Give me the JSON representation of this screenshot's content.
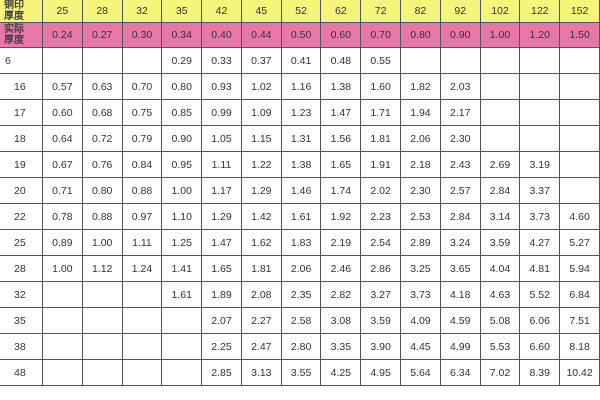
{
  "table": {
    "header_label": "铜印\n厚度",
    "actual_label": "实际\n厚度",
    "columns": [
      "25",
      "28",
      "32",
      "35",
      "42",
      "45",
      "52",
      "62",
      "72",
      "82",
      "92",
      "102",
      "122",
      "152"
    ],
    "actual": [
      "0.24",
      "0.27",
      "0.30",
      "0.34",
      "0.40",
      "0.44",
      "0.50",
      "0.60",
      "0.70",
      "0.80",
      "0.90",
      "1.00",
      "1.20",
      "1.50"
    ],
    "rows": [
      {
        "label": "6",
        "cells": [
          "",
          "",
          "",
          "0.29",
          "0.33",
          "0.37",
          "0.41",
          "0.48",
          "0.55",
          "",
          "",
          "",
          "",
          ""
        ]
      },
      {
        "label": "16",
        "cells": [
          "0.57",
          "0.63",
          "0.70",
          "0.80",
          "0.93",
          "1.02",
          "1.16",
          "1.38",
          "1.60",
          "1.82",
          "2.03",
          "",
          "",
          ""
        ]
      },
      {
        "label": "17",
        "cells": [
          "0.60",
          "0.68",
          "0.75",
          "0.85",
          "0.99",
          "1.09",
          "1.23",
          "1.47",
          "1.71",
          "1.94",
          "2.17",
          "",
          "",
          ""
        ]
      },
      {
        "label": "18",
        "cells": [
          "0.64",
          "0.72",
          "0.79",
          "0.90",
          "1.05",
          "1.15",
          "1.31",
          "1.56",
          "1.81",
          "2.06",
          "2.30",
          "",
          "",
          ""
        ]
      },
      {
        "label": "19",
        "cells": [
          "0.67",
          "0.76",
          "0.84",
          "0.95",
          "1.11",
          "1.22",
          "1.38",
          "1.65",
          "1.91",
          "2.18",
          "2.43",
          "2.69",
          "3.19",
          ""
        ]
      },
      {
        "label": "20",
        "cells": [
          "0.71",
          "0.80",
          "0.88",
          "1.00",
          "1.17",
          "1.29",
          "1.46",
          "1.74",
          "2.02",
          "2.30",
          "2.57",
          "2.84",
          "3.37",
          ""
        ]
      },
      {
        "label": "22",
        "cells": [
          "0.78",
          "0.88",
          "0.97",
          "1.10",
          "1.29",
          "1.42",
          "1.61",
          "1.92",
          "2.23",
          "2.53",
          "2.84",
          "3.14",
          "3.73",
          "4.60"
        ]
      },
      {
        "label": "25",
        "cells": [
          "0.89",
          "1.00",
          "1.11",
          "1.25",
          "1.47",
          "1.62",
          "1.83",
          "2.19",
          "2.54",
          "2.89",
          "3.24",
          "3.59",
          "4.27",
          "5.27"
        ]
      },
      {
        "label": "28",
        "cells": [
          "1.00",
          "1.12",
          "1.24",
          "1.41",
          "1.65",
          "1.81",
          "2.06",
          "2.46",
          "2.86",
          "3.25",
          "3.65",
          "4.04",
          "4.81",
          "5.94"
        ]
      },
      {
        "label": "32",
        "cells": [
          "",
          "",
          "",
          "1.61",
          "1.89",
          "2.08",
          "2.35",
          "2.82",
          "3.27",
          "3.73",
          "4.18",
          "4.63",
          "5.52",
          "6.84"
        ]
      },
      {
        "label": "35",
        "cells": [
          "",
          "",
          "",
          "",
          "2.07",
          "2.27",
          "2.58",
          "3.08",
          "3.59",
          "4.09",
          "4.59",
          "5.08",
          "6.06",
          "7.51"
        ]
      },
      {
        "label": "38",
        "cells": [
          "",
          "",
          "",
          "",
          "2.25",
          "2.47",
          "2.80",
          "3.35",
          "3.90",
          "4.45",
          "4.99",
          "5.53",
          "6.60",
          "8.18"
        ]
      },
      {
        "label": "48",
        "cells": [
          "",
          "",
          "",
          "",
          "2.85",
          "3.13",
          "3.55",
          "4.25",
          "4.95",
          "5.64",
          "6.34",
          "7.02",
          "8.39",
          "10.42"
        ]
      }
    ]
  },
  "colors": {
    "header_bg": "#f6f47a",
    "actual_bg": "#e777a6"
  }
}
